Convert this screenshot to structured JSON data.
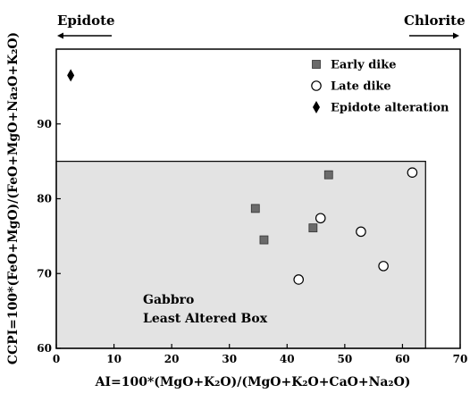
{
  "chart_data": {
    "type": "scatter",
    "xlabel": "AI=100*(MgO+K₂O)/(MgO+K₂O+CaO+Na₂O)",
    "ylabel": "CCPI=100*(FeO+MgO)/(FeO+MgO+Na₂O+K₂O)",
    "xlim": [
      0,
      70
    ],
    "ylim": [
      60,
      100
    ],
    "x_ticks": [
      "0",
      "10",
      "20",
      "30",
      "40",
      "50",
      "60",
      "70"
    ],
    "y_ticks": [
      "60",
      "70",
      "80",
      "90"
    ],
    "corner_labels": {
      "left": "Epidote",
      "right": "Chlorite"
    },
    "box": {
      "label_line1": "Gabbro",
      "label_line2": "Least Altered Box",
      "x_range": [
        0,
        64
      ],
      "y_range": [
        60,
        85
      ],
      "fill": "#e3e3e3"
    },
    "legend_position": "top-right",
    "series": [
      {
        "name": "Early dike",
        "marker": "square",
        "color": "#6b6b6b",
        "points": [
          {
            "x": 34.5,
            "y": 78.7
          },
          {
            "x": 36.0,
            "y": 74.5
          },
          {
            "x": 44.5,
            "y": 76.1
          },
          {
            "x": 47.2,
            "y": 83.2
          }
        ]
      },
      {
        "name": "Late dike",
        "marker": "circle-open",
        "color": "#000000",
        "points": [
          {
            "x": 42.0,
            "y": 69.2
          },
          {
            "x": 45.8,
            "y": 77.4
          },
          {
            "x": 52.8,
            "y": 75.6
          },
          {
            "x": 56.7,
            "y": 71.0
          },
          {
            "x": 61.7,
            "y": 83.5
          }
        ]
      },
      {
        "name": "Epidote alteration",
        "marker": "diamond",
        "color": "#000000",
        "points": [
          {
            "x": 2.5,
            "y": 96.5
          }
        ]
      }
    ]
  }
}
